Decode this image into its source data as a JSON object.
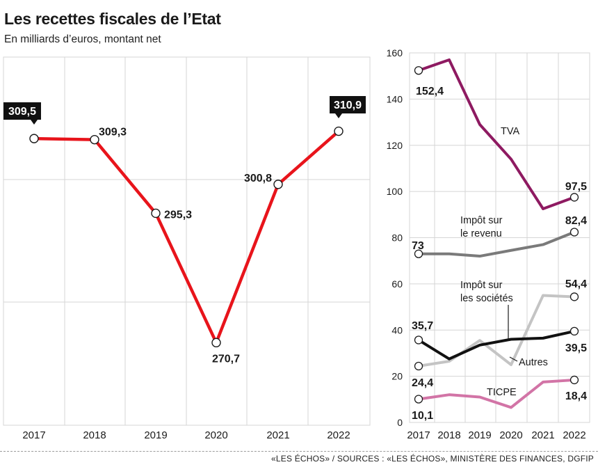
{
  "header": {
    "title": "Les recettes fiscales de l’Etat",
    "subtitle": "En milliards d’euros, montant net"
  },
  "footer": {
    "source": "«LES ÉCHOS» / SOURCES : «LES ÉCHOS», MINISTÈRE DES FINANCES, DGFIP"
  },
  "colors": {
    "total": "#e8141b",
    "tva": "#8e1a61",
    "ir": "#7a7a7a",
    "is": "#111111",
    "autres": "#c4c4c4",
    "ticpe": "#d274a6",
    "grid": "#d5d5d5"
  },
  "chart_data": [
    {
      "type": "line",
      "title": "",
      "categories": [
        "2017",
        "2018",
        "2019",
        "2020",
        "2021",
        "2022"
      ],
      "series": [
        {
          "values": [
            309.5,
            309.3,
            295.3,
            270.7,
            300.8,
            310.9
          ],
          "labels": [
            "309,5",
            "309,3",
            "295,3",
            "270,7",
            "300,8",
            "310,9"
          ],
          "color_key": "total"
        }
      ],
      "ylim": [
        255,
        325
      ],
      "y_tick_labels": "none",
      "grid": true,
      "highlighted_labels": [
        "309,5",
        "310,9"
      ]
    },
    {
      "type": "line",
      "categories": [
        "2017",
        "2018",
        "2019",
        "2020",
        "2021",
        "2022"
      ],
      "ylim": [
        0,
        160
      ],
      "yticks": [
        0,
        20,
        40,
        60,
        80,
        100,
        120,
        140,
        160
      ],
      "grid": true,
      "series": [
        {
          "name": "TVA",
          "values": [
            152.4,
            157,
            129,
            114,
            92.5,
            97.5
          ],
          "end_labels": [
            "152,4",
            "97,5"
          ],
          "color_key": "tva"
        },
        {
          "name": "Impôt sur le revenu",
          "values": [
            73,
            73,
            72,
            74.5,
            77,
            82.4
          ],
          "end_labels": [
            "73",
            "82,4"
          ],
          "color_key": "ir"
        },
        {
          "name": "Impôt sur les sociétés",
          "values": [
            35.7,
            27.5,
            33.5,
            36,
            36.5,
            39.5
          ],
          "end_labels": [
            "35,7",
            "39,5"
          ],
          "color_key": "is"
        },
        {
          "name": "Autres",
          "values": [
            24.4,
            26.5,
            35.5,
            25,
            55,
            54.4
          ],
          "end_labels": [
            "24,4",
            "54,4"
          ],
          "color_key": "autres"
        },
        {
          "name": "TICPE",
          "values": [
            10.1,
            12,
            11,
            6.5,
            17.5,
            18.4
          ],
          "end_labels": [
            "10,1",
            "18,4"
          ],
          "color_key": "ticpe"
        }
      ]
    }
  ]
}
